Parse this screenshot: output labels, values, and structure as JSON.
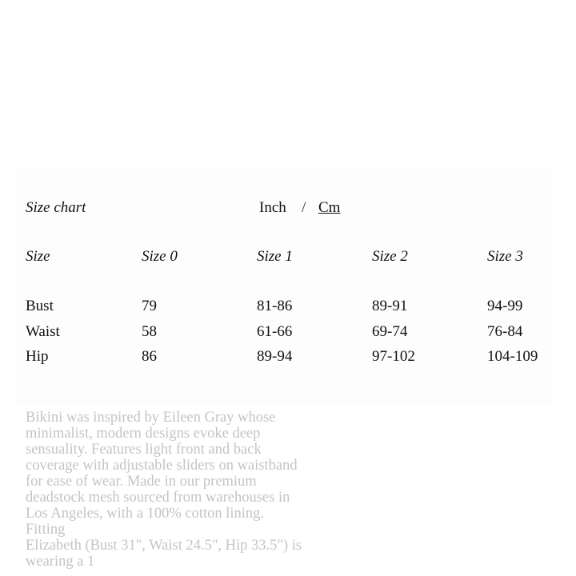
{
  "background_description": [
    "Bikini was inspired by Eileen Gray whose",
    "minimalist, modern designs evoke deep",
    "sensuality. Features light front and back",
    "coverage with adjustable sliders on waistband",
    "for ease of wear. Made in our premium",
    "deadstock mesh sourced from warehouses in",
    "Los Angeles, with a 100% cotton lining.",
    "Fitting",
    "Elizabeth (Bust 31\", Waist 24.5\", Hip 33.5\") is",
    "wearing a 1"
  ],
  "size_chart": {
    "title": "Size chart",
    "unit_inch": "Inch",
    "unit_separator": "/",
    "unit_cm": "Cm",
    "selected_unit": "Cm",
    "headers": [
      "Size",
      "Size 0",
      "Size 1",
      "Size 2",
      "Size 3"
    ],
    "rows": [
      [
        "Bust",
        "79",
        "81-86",
        "89-91",
        "94-99"
      ],
      [
        "Waist",
        "58",
        "61-66",
        "69-74",
        "76-84"
      ],
      [
        "Hip",
        "86",
        "89-94",
        "97-102",
        "104-109"
      ]
    ]
  }
}
